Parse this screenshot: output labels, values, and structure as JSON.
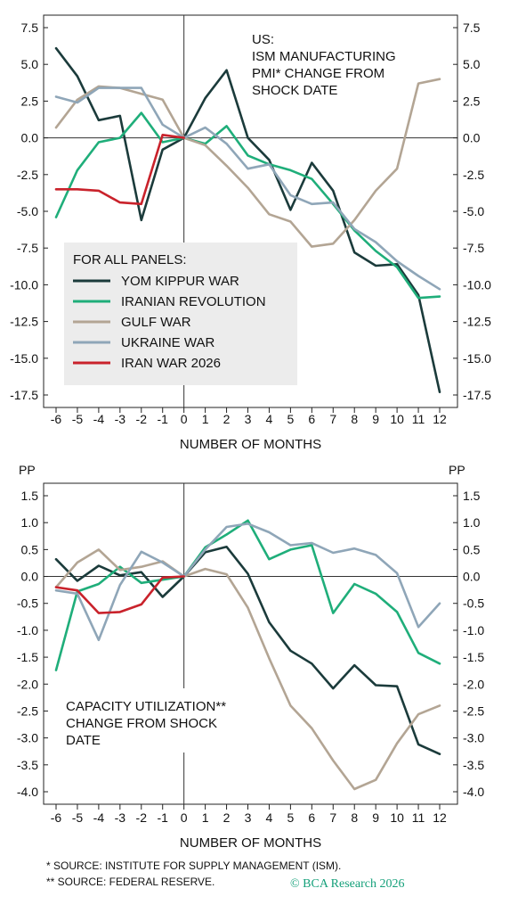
{
  "colors": {
    "yom": "#1b3b3b",
    "iran_rev": "#1fae7a",
    "gulf": "#b3a594",
    "ukraine": "#8fa6b8",
    "iran2026": "#c9222b"
  },
  "chart_data": [
    {
      "type": "line",
      "title": "US: ISM MANUFACTURING PMI* CHANGE FROM SHOCK DATE",
      "title_lines": [
        "US:",
        "ISM MANUFACTURING",
        "PMI* CHANGE FROM",
        "SHOCK DATE"
      ],
      "xlabel": "NUMBER OF MONTHS",
      "ylabel": "",
      "ylim": [
        -17.5,
        7.5
      ],
      "yticks": [
        7.5,
        5.0,
        2.5,
        0.0,
        -2.5,
        -5.0,
        -7.5,
        -10.0,
        -12.5,
        -15.0,
        -17.5
      ],
      "ytick_labels": [
        "7.5",
        "5.0",
        "2.5",
        "0.0",
        "-2.5",
        "-5.0",
        "-7.5",
        "-10.0",
        "-12.5",
        "-15.0",
        "-17.5"
      ],
      "x": [
        -6,
        -5,
        -4,
        -3,
        -2,
        -1,
        0,
        1,
        2,
        3,
        4,
        5,
        6,
        7,
        8,
        9,
        10,
        11,
        12
      ],
      "x_labels": [
        "-6",
        "-5",
        "-4",
        "-3",
        "-2",
        "-1",
        "0",
        "1",
        "2",
        "3",
        "4",
        "5",
        "6",
        "7",
        "8",
        "9",
        "10",
        "11",
        "12"
      ],
      "legend_title": "FOR ALL PANELS:",
      "legend_placement": "center-left",
      "series": [
        {
          "name": "YOM KIPPUR WAR",
          "color_key": "yom",
          "values": [
            6.1,
            4.2,
            1.2,
            1.5,
            -5.6,
            -0.8,
            0.0,
            2.7,
            4.6,
            0.0,
            -1.5,
            -4.9,
            -1.7,
            -3.6,
            -7.8,
            -8.7,
            -8.6,
            -10.7,
            -17.3
          ]
        },
        {
          "name": "IRANIAN REVOLUTION",
          "color_key": "iran_rev",
          "values": [
            -5.4,
            -2.2,
            -0.3,
            0.0,
            1.7,
            -0.3,
            0.0,
            -0.4,
            0.8,
            -1.2,
            -1.8,
            -2.2,
            -2.8,
            -4.5,
            -6.3,
            -7.7,
            -8.8,
            -10.9,
            -10.8
          ]
        },
        {
          "name": "GULF WAR",
          "color_key": "gulf",
          "values": [
            0.7,
            2.6,
            3.5,
            3.4,
            3.0,
            2.6,
            0.0,
            -0.5,
            -1.9,
            -3.4,
            -5.2,
            -5.7,
            -7.4,
            -7.2,
            -5.6,
            -3.6,
            -2.1,
            3.7,
            4.0
          ]
        },
        {
          "name": "UKRAINE WAR",
          "color_key": "ukraine",
          "values": [
            2.8,
            2.4,
            3.4,
            3.4,
            3.4,
            0.9,
            0.0,
            0.7,
            -0.4,
            -2.1,
            -1.8,
            -3.9,
            -4.5,
            -4.4,
            -6.2,
            -7.1,
            -8.4,
            -9.4,
            -10.3
          ]
        },
        {
          "name": "IRAN WAR 2026",
          "color_key": "iran2026",
          "values": [
            -3.5,
            -3.5,
            -3.6,
            -4.4,
            -4.5,
            0.2,
            0.0,
            null,
            null,
            null,
            null,
            null,
            null,
            null,
            null,
            null,
            null,
            null,
            null
          ]
        }
      ]
    },
    {
      "type": "line",
      "title": "CAPACITY UTILIZATION** CHANGE FROM SHOCK DATE",
      "title_lines": [
        "CAPACITY UTILIZATION**",
        "CHANGE FROM SHOCK",
        "DATE"
      ],
      "unit_left": "PP",
      "unit_right": "PP",
      "xlabel": "NUMBER OF MONTHS",
      "ylabel": "",
      "ylim": [
        -4.0,
        1.5
      ],
      "yticks": [
        1.5,
        1.0,
        0.5,
        0.0,
        -0.5,
        -1.0,
        -1.5,
        -2.0,
        -2.5,
        -3.0,
        -3.5,
        -4.0
      ],
      "ytick_labels": [
        "1.5",
        "1.0",
        "0.5",
        "0.0",
        "-0.5",
        "-1.0",
        "-1.5",
        "-2.0",
        "-2.5",
        "-3.0",
        "-3.5",
        "-4.0"
      ],
      "x": [
        -6,
        -5,
        -4,
        -3,
        -2,
        -1,
        0,
        1,
        2,
        3,
        4,
        5,
        6,
        7,
        8,
        9,
        10,
        11,
        12
      ],
      "x_labels": [
        "-6",
        "-5",
        "-4",
        "-3",
        "-2",
        "-1",
        "0",
        "1",
        "2",
        "3",
        "4",
        "5",
        "6",
        "7",
        "8",
        "9",
        "10",
        "11",
        "12"
      ],
      "series": [
        {
          "name": "YOM KIPPUR WAR",
          "color_key": "yom",
          "values": [
            0.32,
            -0.08,
            0.2,
            0.02,
            0.08,
            -0.38,
            0.0,
            0.45,
            0.55,
            0.05,
            -0.85,
            -1.38,
            -1.62,
            -2.08,
            -1.65,
            -2.02,
            -2.04,
            -3.12,
            -3.3
          ]
        },
        {
          "name": "IRANIAN REVOLUTION",
          "color_key": "iran_rev",
          "values": [
            -1.74,
            -0.28,
            -0.14,
            0.18,
            -0.12,
            -0.06,
            0.0,
            0.54,
            0.78,
            1.04,
            0.32,
            0.5,
            0.58,
            -0.68,
            -0.14,
            -0.32,
            -0.66,
            -1.42,
            -1.62
          ]
        },
        {
          "name": "GULF WAR",
          "color_key": "gulf",
          "values": [
            -0.2,
            0.26,
            0.5,
            0.12,
            0.18,
            0.28,
            0.0,
            0.14,
            0.04,
            -0.58,
            -1.52,
            -2.4,
            -2.82,
            -3.42,
            -3.95,
            -3.78,
            -3.1,
            -2.56,
            -2.4
          ]
        },
        {
          "name": "UKRAINE WAR",
          "color_key": "ukraine",
          "values": [
            -0.26,
            -0.32,
            -1.18,
            -0.16,
            0.46,
            0.26,
            0.0,
            0.5,
            0.92,
            0.98,
            0.82,
            0.58,
            0.62,
            0.44,
            0.52,
            0.4,
            0.06,
            -0.94,
            -0.5
          ]
        },
        {
          "name": "IRAN WAR 2026",
          "color_key": "iran2026",
          "values": [
            -0.2,
            -0.26,
            -0.68,
            -0.66,
            -0.52,
            -0.02,
            0.0,
            null,
            null,
            null,
            null,
            null,
            null,
            null,
            null,
            null,
            null,
            null,
            null
          ]
        }
      ]
    }
  ],
  "footnotes": {
    "note1": "*   SOURCE: INSTITUTE FOR SUPPLY MANAGEMENT (ISM).",
    "note2": "**  SOURCE: FEDERAL RESERVE.",
    "brand": "© BCA Research 2026"
  }
}
